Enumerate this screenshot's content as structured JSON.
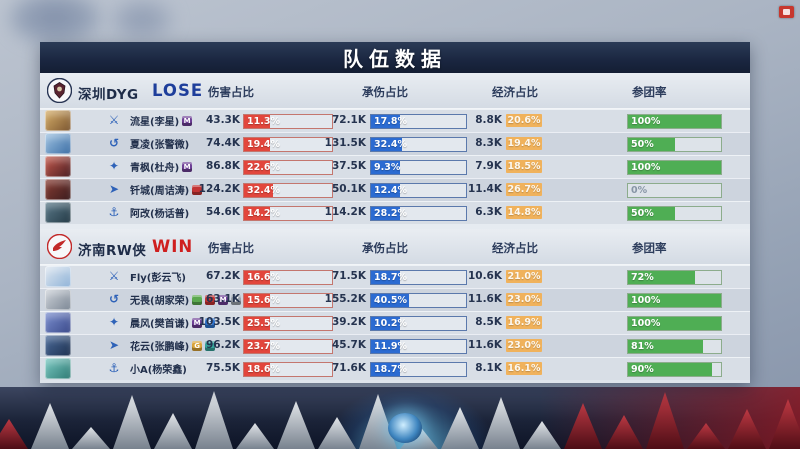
{
  "title": "队伍数据",
  "columns": [
    "伤害占比",
    "承伤占比",
    "经济占比",
    "参团率"
  ],
  "colors": {
    "damage_fill": "#e2463c",
    "taken_fill": "#2b6bd2",
    "participation_fill": "#4fae54",
    "economy_chip": "#f0b25c",
    "lose": "#1e3e9b",
    "win": "#cf1f1f"
  },
  "teams": [
    {
      "name": "深圳DYG",
      "result": "LOSE",
      "result_type": "lose",
      "logo": "dyg-lion-logo",
      "players": [
        {
          "player": "流星(李星)",
          "role_icon": "clash-lane-icon",
          "badges": [
            {
              "name": "medal-purple-badge",
              "color": "#6e3f96",
              "glyph": "M"
            }
          ],
          "avatar_colors": [
            "#d8b06a",
            "#7a5530"
          ],
          "damage_value": "43.3K",
          "damage_pct": "11.3%",
          "damage_pct_num": 11.3,
          "taken_value": "72.1K",
          "taken_pct": "17.8%",
          "taken_pct_num": 17.8,
          "economy_value": "8.8K",
          "economy_pct": "20.6%",
          "participation_pct": "100%",
          "participation_pct_num": 100
        },
        {
          "player": "夏凌(张警微)",
          "role_icon": "jungle-icon",
          "badges": [],
          "avatar_colors": [
            "#9fc3e2",
            "#3c6ea5"
          ],
          "damage_value": "74.4K",
          "damage_pct": "19.4%",
          "damage_pct_num": 19.4,
          "taken_value": "131.5K",
          "taken_pct": "32.4%",
          "taken_pct_num": 32.4,
          "economy_value": "8.3K",
          "economy_pct": "19.4%",
          "participation_pct": "50%",
          "participation_pct_num": 50
        },
        {
          "player": "青枫(杜舟)",
          "role_icon": "mid-lane-icon",
          "badges": [
            {
              "name": "medal-purple-badge",
              "color": "#6e3f96",
              "glyph": "M"
            }
          ],
          "avatar_colors": [
            "#c5584a",
            "#4a1f24"
          ],
          "damage_value": "86.8K",
          "damage_pct": "22.6%",
          "damage_pct_num": 22.6,
          "taken_value": "37.5K",
          "taken_pct": "9.3%",
          "taken_pct_num": 9.3,
          "economy_value": "7.9K",
          "economy_pct": "18.5%",
          "participation_pct": "100%",
          "participation_pct_num": 100
        },
        {
          "player": "钎城(周诘涛)",
          "role_icon": "farm-lane-icon",
          "badges": [
            {
              "name": "medal-red-badge",
              "color": "#c23333",
              "glyph": ""
            }
          ],
          "avatar_colors": [
            "#8a3d33",
            "#3a1c1e"
          ],
          "damage_value": "124.2K",
          "damage_pct": "32.4%",
          "damage_pct_num": 32.4,
          "taken_value": "50.1K",
          "taken_pct": "12.4%",
          "taken_pct_num": 12.4,
          "economy_value": "11.4K",
          "economy_pct": "26.7%",
          "participation_pct": "0%",
          "participation_pct_num": 0
        },
        {
          "player": "阿改(杨话普)",
          "role_icon": "roam-icon",
          "badges": [],
          "avatar_colors": [
            "#5b7a8a",
            "#243a46"
          ],
          "damage_value": "54.6K",
          "damage_pct": "14.2%",
          "damage_pct_num": 14.2,
          "taken_value": "114.2K",
          "taken_pct": "28.2%",
          "taken_pct_num": 28.2,
          "economy_value": "6.3K",
          "economy_pct": "14.8%",
          "participation_pct": "50%",
          "participation_pct_num": 50
        }
      ]
    },
    {
      "name": "济南RW侠",
      "result": "WIN",
      "result_type": "win",
      "logo": "rw-bird-logo",
      "players": [
        {
          "player": "Fly(彭云飞)",
          "role_icon": "clash-lane-icon",
          "badges": [],
          "avatar_colors": [
            "#dfe7f0",
            "#8fb3d8"
          ],
          "damage_value": "67.2K",
          "damage_pct": "16.6%",
          "damage_pct_num": 16.6,
          "taken_value": "71.5K",
          "taken_pct": "18.7%",
          "taken_pct_num": 18.7,
          "economy_value": "10.6K",
          "economy_pct": "21.0%",
          "participation_pct": "72%",
          "participation_pct_num": 72
        },
        {
          "player": "无畏(胡家荣)",
          "role_icon": "jungle-icon",
          "badges": [
            {
              "name": "medal-green-badge",
              "color": "#5aa84e",
              "glyph": ""
            },
            {
              "name": "medal-red-badge",
              "color": "#c23333",
              "glyph": ""
            },
            {
              "name": "medal-purple-badge",
              "color": "#6e3f96",
              "glyph": "M"
            },
            {
              "name": "medal-silver-badge",
              "color": "#9aa2ac",
              "glyph": "X"
            },
            {
              "name": "medal-red-badge",
              "color": "#b03038",
              "glyph": ""
            }
          ],
          "avatar_colors": [
            "#cfd4da",
            "#7b8694"
          ],
          "damage_value": "63.1K",
          "damage_pct": "15.6%",
          "damage_pct_num": 15.6,
          "taken_value": "155.2K",
          "taken_pct": "40.5%",
          "taken_pct_num": 40.5,
          "economy_value": "11.6K",
          "economy_pct": "23.0%",
          "participation_pct": "100%",
          "participation_pct_num": 100
        },
        {
          "player": "晨风(樊首谦)",
          "role_icon": "mid-lane-icon",
          "badges": [
            {
              "name": "medal-purple-badge",
              "color": "#6e3f96",
              "glyph": "M"
            },
            {
              "name": "medal-blue-badge",
              "color": "#2e74cf",
              "glyph": "S"
            }
          ],
          "avatar_colors": [
            "#7b8fd0",
            "#3b4a8a"
          ],
          "damage_value": "103.5K",
          "damage_pct": "25.5%",
          "damage_pct_num": 25.5,
          "taken_value": "39.2K",
          "taken_pct": "10.2%",
          "taken_pct_num": 10.2,
          "economy_value": "8.5K",
          "economy_pct": "16.9%",
          "participation_pct": "100%",
          "participation_pct_num": 100
        },
        {
          "player": "花云(张鹏峰)",
          "role_icon": "farm-lane-icon",
          "badges": [
            {
              "name": "medal-gold-badge",
              "color": "#d9a33a",
              "glyph": "G"
            },
            {
              "name": "medal-teal-badge",
              "color": "#35a39a",
              "glyph": ""
            }
          ],
          "avatar_colors": [
            "#4a6a9a",
            "#1f3250"
          ],
          "damage_value": "96.2K",
          "damage_pct": "23.7%",
          "damage_pct_num": 23.7,
          "taken_value": "45.7K",
          "taken_pct": "11.9%",
          "taken_pct_num": 11.9,
          "economy_value": "11.6K",
          "economy_pct": "23.0%",
          "participation_pct": "81%",
          "participation_pct_num": 81
        },
        {
          "player": "小A(杨荣鑫)",
          "role_icon": "roam-icon",
          "badges": [],
          "avatar_colors": [
            "#79c9c2",
            "#2f7a74"
          ],
          "damage_value": "75.5K",
          "damage_pct": "18.6%",
          "damage_pct_num": 18.6,
          "taken_value": "71.6K",
          "taken_pct": "18.7%",
          "taken_pct_num": 18.7,
          "economy_value": "8.1K",
          "economy_pct": "16.1%",
          "participation_pct": "90%",
          "participation_pct_num": 90
        }
      ]
    }
  ]
}
